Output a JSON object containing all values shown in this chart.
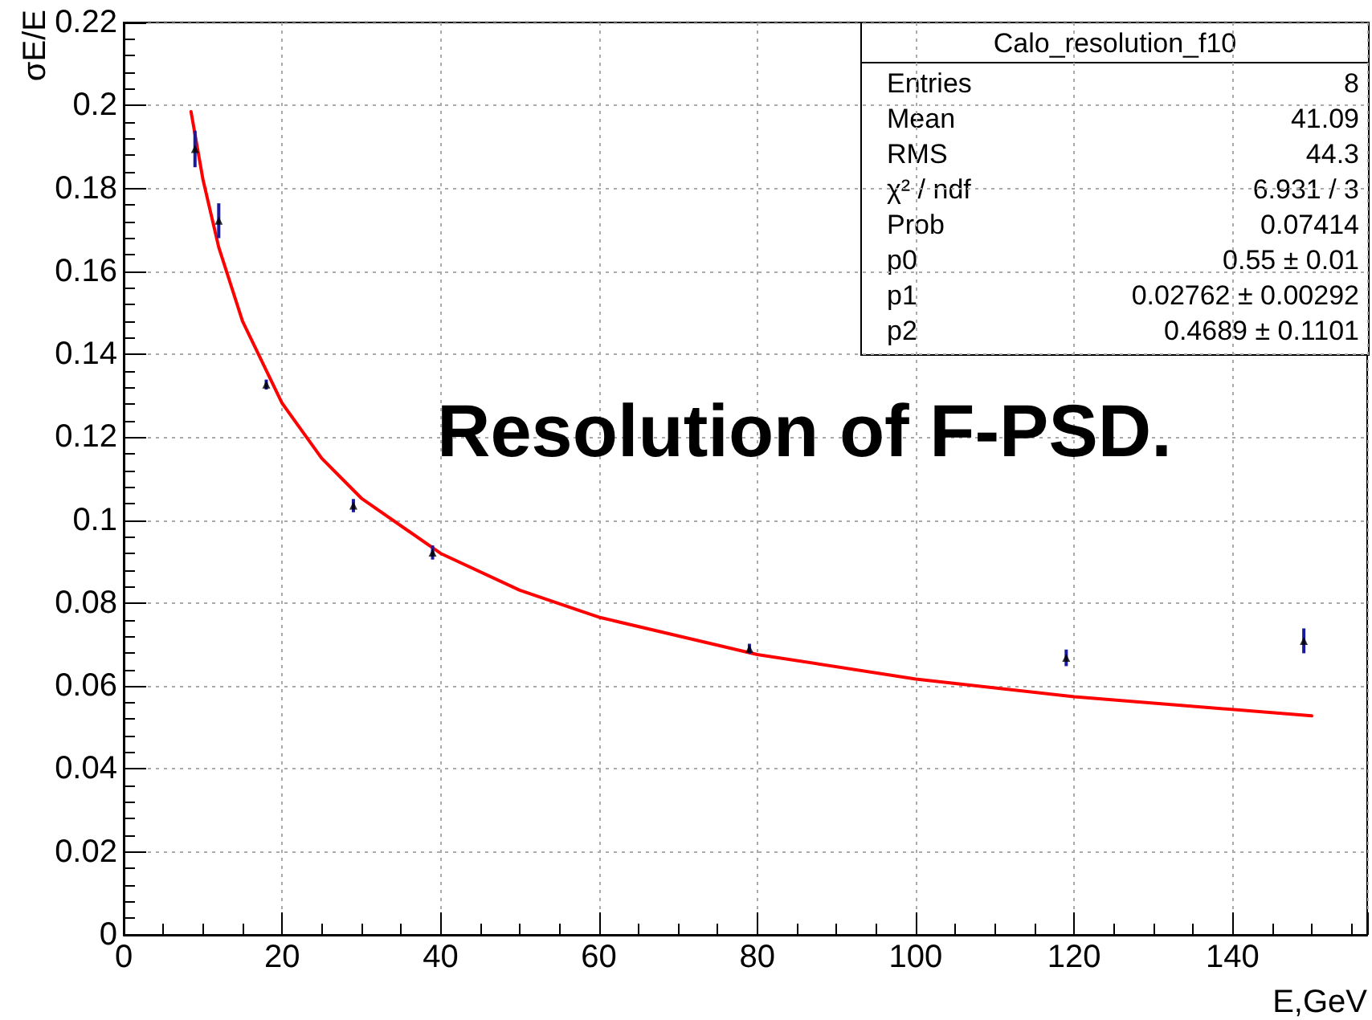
{
  "chart_data": {
    "type": "scatter",
    "xlabel": "E,GeV",
    "ylabel": "σE/E",
    "annotations": [
      "Resolution of F-PSD.",
      "Calo_resolution_f10",
      "Entries",
      "8",
      "Mean",
      "41.09",
      "RMS",
      "44.3",
      "χ² / ndf",
      "6.931 / 3",
      "Prob",
      "0.07414",
      "p0",
      "0.55 ± 0.01",
      "p1",
      "0.02762 ± 0.00292",
      "p2",
      "0.4689 ± 0.1101"
    ],
    "xlim": [
      0,
      157
    ],
    "xticks": [
      0,
      20,
      40,
      60,
      80,
      100,
      120,
      140
    ],
    "ylim": [
      0,
      0.22
    ],
    "yticks": [
      0,
      0.02,
      0.04,
      0.06,
      0.08,
      0.1,
      0.12,
      0.14,
      0.16,
      0.18,
      0.2,
      0.22
    ],
    "grid": true,
    "marker": "triangle",
    "series": [
      {
        "type": "scatter",
        "color": "#000000",
        "x": [
          9,
          12,
          18,
          29,
          39,
          79,
          119,
          149
        ],
        "values": [
          0.1895,
          0.1722,
          0.1327,
          0.1035,
          0.0922,
          0.069,
          0.0668,
          0.0709
        ],
        "errors": [
          0.0044,
          0.0042,
          0.0012,
          0.0016,
          0.0017,
          0.0012,
          0.002,
          0.003
        ]
      },
      {
        "type": "line",
        "color": "#ff0000",
        "line_style": "solid",
        "marker": "none",
        "x": [
          8.5,
          10,
          12,
          15,
          20,
          25,
          30,
          40,
          50,
          60,
          80,
          100,
          120,
          150
        ],
        "values": [
          0.1985,
          0.1822,
          0.1658,
          0.148,
          0.1282,
          0.1149,
          0.1053,
          0.092,
          0.0831,
          0.0766,
          0.0676,
          0.0617,
          0.0574,
          0.0528
        ]
      }
    ]
  }
}
